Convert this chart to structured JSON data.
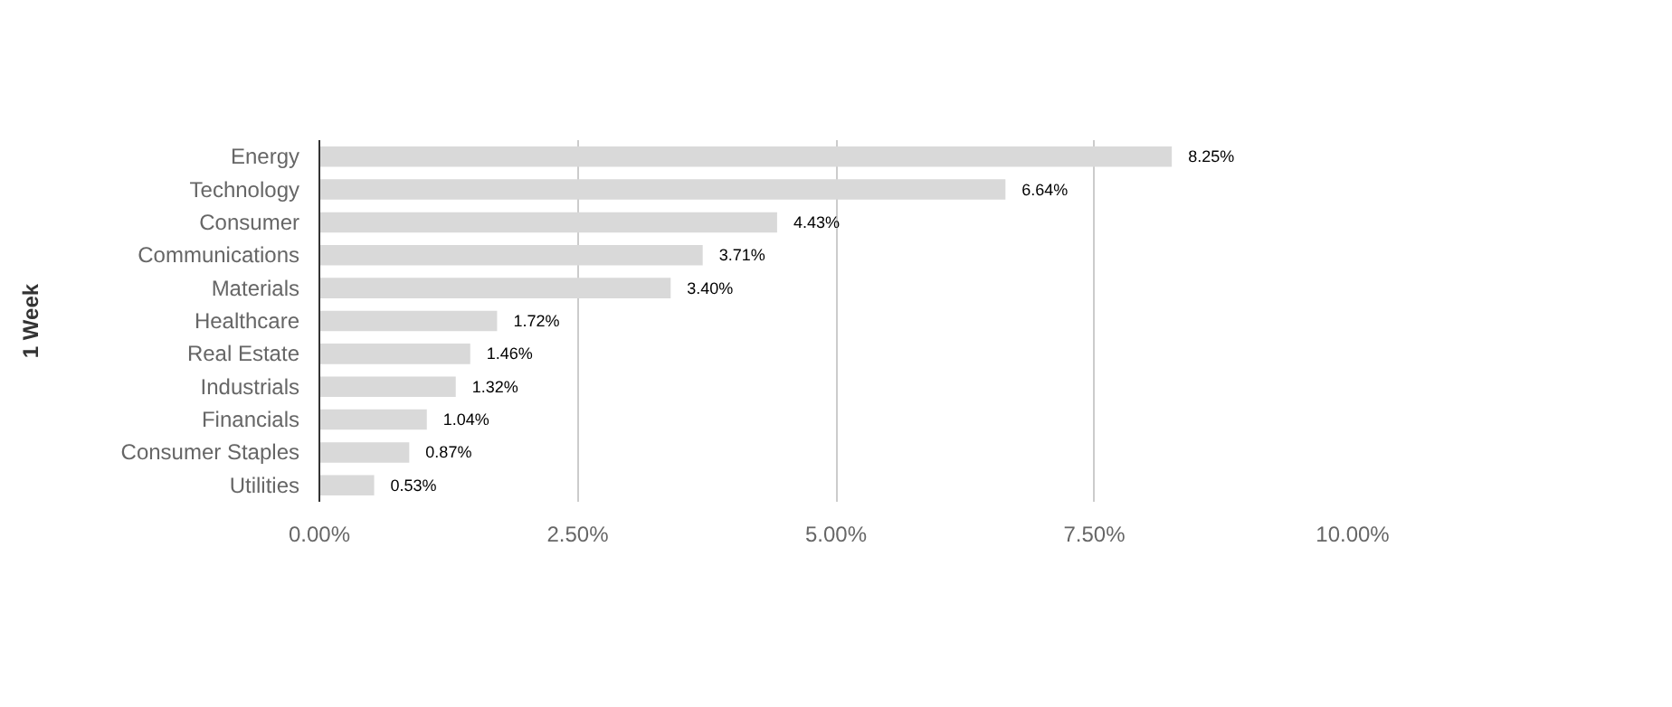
{
  "chart_data": {
    "type": "bar",
    "orientation": "horizontal",
    "ylabel": "1 Week",
    "categories": [
      "Energy",
      "Technology",
      "Consumer",
      "Communications",
      "Materials",
      "Healthcare",
      "Real Estate",
      "Industrials",
      "Financials",
      "Consumer Staples",
      "Utilities"
    ],
    "values": [
      8.25,
      6.64,
      4.43,
      3.71,
      3.4,
      1.72,
      1.46,
      1.32,
      1.04,
      0.87,
      0.53
    ],
    "value_labels": [
      "8.25%",
      "6.64%",
      "4.43%",
      "3.71%",
      "3.40%",
      "1.72%",
      "1.46%",
      "1.32%",
      "1.04%",
      "0.87%",
      "0.53%"
    ],
    "color": "#d9d9d9",
    "xlim": [
      0,
      10
    ],
    "xticks": [
      {
        "value": 0,
        "label": "0.00%"
      },
      {
        "value": 2.5,
        "label": "2.50%"
      },
      {
        "value": 5,
        "label": "5.00%"
      },
      {
        "value": 7.5,
        "label": "7.50%"
      },
      {
        "value": 10,
        "label": "10.00%"
      }
    ],
    "grid": "x"
  }
}
